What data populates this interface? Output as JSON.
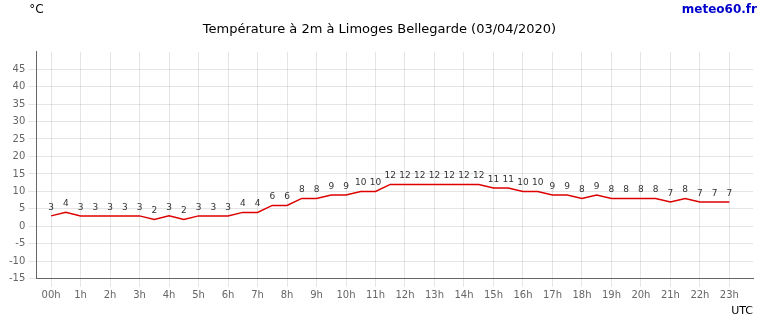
{
  "chart_data": {
    "type": "line",
    "title": "Température à 2m à Limoges Bellegarde (03/04/2020)",
    "xlabel": "UTC",
    "ylabel": "°C",
    "annotations": [
      {
        "text": "meteo60.fr",
        "color": "#0000cc"
      }
    ],
    "x": [
      0,
      0.5,
      1,
      1.5,
      2,
      2.5,
      3,
      3.5,
      4,
      4.5,
      5,
      5.5,
      6,
      6.5,
      7,
      7.5,
      8,
      8.5,
      9,
      9.5,
      10,
      10.5,
      11,
      11.5,
      12,
      12.5,
      13,
      13.5,
      14,
      14.5,
      15,
      15.5,
      16,
      16.5,
      17,
      17.5,
      18,
      18.5,
      19,
      19.5,
      20,
      20.5,
      21,
      21.5,
      22,
      22.5,
      23
    ],
    "values": [
      3,
      4,
      3,
      3,
      3,
      3,
      3,
      2,
      3,
      2,
      3,
      3,
      3,
      4,
      4,
      6,
      6,
      8,
      8,
      9,
      9,
      10,
      10,
      12,
      12,
      12,
      12,
      12,
      12,
      12,
      11,
      11,
      10,
      10,
      9,
      9,
      8,
      9,
      8,
      8,
      8,
      8,
      7,
      8,
      7,
      7,
      7
    ],
    "color": "#dd0000",
    "xlim": [
      -0.5,
      23.8
    ],
    "xticks": [
      {
        "value": 0,
        "label": "00h"
      },
      {
        "value": 1,
        "label": "1h"
      },
      {
        "value": 2,
        "label": "2h"
      },
      {
        "value": 3,
        "label": "3h"
      },
      {
        "value": 4,
        "label": "4h"
      },
      {
        "value": 5,
        "label": "5h"
      },
      {
        "value": 6,
        "label": "6h"
      },
      {
        "value": 7,
        "label": "7h"
      },
      {
        "value": 8,
        "label": "8h"
      },
      {
        "value": 9,
        "label": "9h"
      },
      {
        "value": 10,
        "label": "10h"
      },
      {
        "value": 11,
        "label": "11h"
      },
      {
        "value": 12,
        "label": "12h"
      },
      {
        "value": 13,
        "label": "13h"
      },
      {
        "value": 14,
        "label": "14h"
      },
      {
        "value": 15,
        "label": "15h"
      },
      {
        "value": 16,
        "label": "16h"
      },
      {
        "value": 17,
        "label": "17h"
      },
      {
        "value": 18,
        "label": "18h"
      },
      {
        "value": 19,
        "label": "19h"
      },
      {
        "value": 20,
        "label": "20h"
      },
      {
        "value": 21,
        "label": "21h"
      },
      {
        "value": 22,
        "label": "22h"
      },
      {
        "value": 23,
        "label": "23h"
      }
    ],
    "ylim": [
      -15,
      50
    ],
    "yticks": [
      -15,
      -10,
      -5,
      0,
      5,
      10,
      15,
      20,
      25,
      30,
      35,
      40,
      45
    ],
    "grid": true,
    "data_labels": true
  }
}
